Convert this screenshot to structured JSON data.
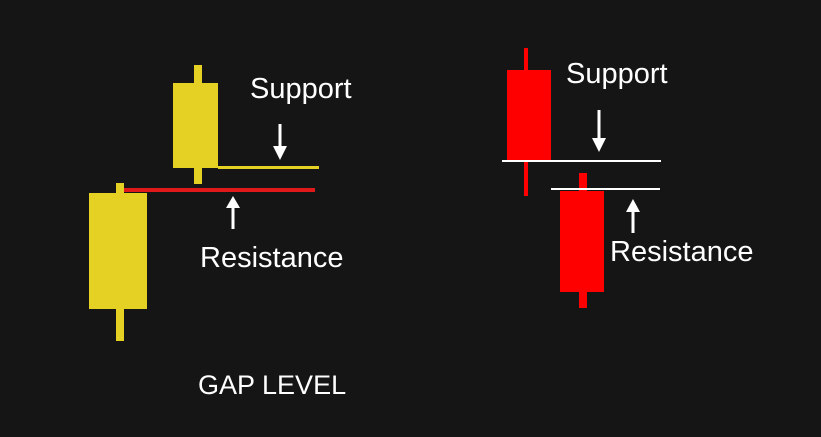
{
  "colors": {
    "background": "#151515",
    "bullish_candle": "#e5d124",
    "bearish_candle": "#ff0000",
    "resistance_line_left": "#e01a1a",
    "support_line_left": "#e5d124",
    "level_lines_right": "#ffffff",
    "text": "#ffffff",
    "arrow": "#ffffff"
  },
  "left_panel": {
    "support_label": "Support",
    "resistance_label": "Resistance",
    "icons": [
      "arrow-down-icon",
      "arrow-up-icon"
    ]
  },
  "right_panel": {
    "support_label": "Support",
    "resistance_label": "Resistance",
    "icons": [
      "arrow-down-icon",
      "arrow-up-icon"
    ]
  },
  "title": "GAP LEVEL"
}
